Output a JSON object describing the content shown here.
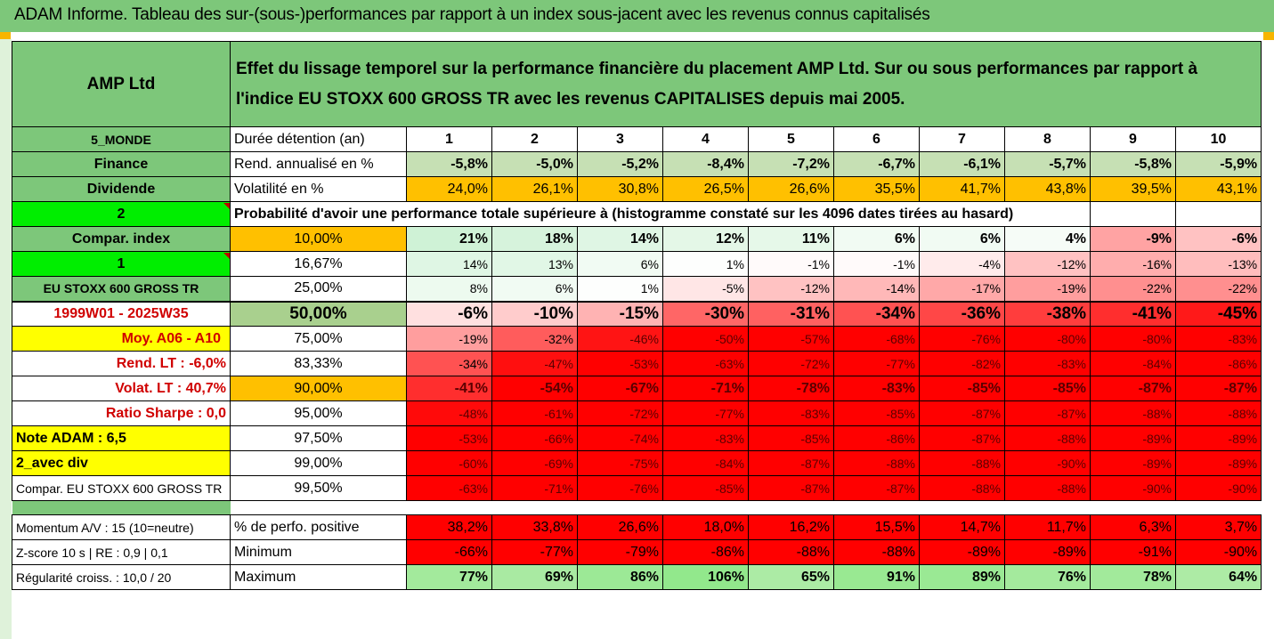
{
  "title": "ADAM Informe. Tableau des sur-(sous-)performances par rapport à un index sous-jacent avec les revenus connus capitalisés",
  "header": {
    "company": "AMP Ltd",
    "description": "Effet du lissage temporel sur la performance financière du placement AMP Ltd. Sur ou sous performances par rapport à l'indice EU STOXX 600 GROSS TR avec les revenus CAPITALISES depuis mai 2005."
  },
  "left": {
    "region": "5_MONDE",
    "sector": "Finance",
    "dividend": "Dividende",
    "num2": "2",
    "compar_index": "Compar. index",
    "num1": "1",
    "index_name": "EU STOXX 600 GROSS TR",
    "period": "1999W01 - 2025W35",
    "moy": "Moy. A06 - A10",
    "rend_lt": "Rend. LT :   -6,0%",
    "volat_lt": "Volat. LT :   40,7%",
    "sharpe": "Ratio Sharpe :   0,0",
    "note": "Note ADAM : 6,5",
    "avec_div": "2_avec div",
    "compar_eu": "Compar. EU STOXX 600 GROSS TR",
    "momentum": "Momentum A/V : 15 (10=neutre)",
    "zscore": "Z-score 10 s  | RE : 0,9  | 0,1",
    "regularite": "Régularité croiss. : 10,0 / 20"
  },
  "labels": {
    "duree": "Durée détention (an)",
    "rend": "Rend. annualisé en %",
    "volat": "Volatilité en %",
    "proba": "Probabilité d'avoir une performance totale supérieure à (histogramme constaté sur les 4096 dates tirées au hasard)",
    "perfo_pos": "% de perfo. positive",
    "minimum": "Minimum",
    "maximum": "Maximum"
  },
  "years": [
    "1",
    "2",
    "3",
    "4",
    "5",
    "6",
    "7",
    "8",
    "9",
    "10"
  ],
  "rend": [
    "-5,8%",
    "-5,0%",
    "-5,2%",
    "-8,4%",
    "-7,2%",
    "-6,7%",
    "-6,1%",
    "-5,7%",
    "-5,8%",
    "-5,9%"
  ],
  "volat": [
    "24,0%",
    "26,1%",
    "30,8%",
    "26,5%",
    "26,6%",
    "35,5%",
    "41,7%",
    "43,8%",
    "39,5%",
    "43,1%"
  ],
  "proba_rows": [
    {
      "pct": "10,00%",
      "values": [
        "21%",
        "18%",
        "14%",
        "12%",
        "11%",
        "6%",
        "6%",
        "4%",
        "-9%",
        "-6%"
      ]
    },
    {
      "pct": "16,67%",
      "values": [
        "14%",
        "13%",
        "6%",
        "1%",
        "-1%",
        "-1%",
        "-4%",
        "-12%",
        "-16%",
        "-13%"
      ]
    },
    {
      "pct": "25,00%",
      "values": [
        "8%",
        "6%",
        "1%",
        "-5%",
        "-12%",
        "-14%",
        "-17%",
        "-19%",
        "-22%",
        "-22%"
      ]
    },
    {
      "pct": "50,00%",
      "values": [
        "-6%",
        "-10%",
        "-15%",
        "-30%",
        "-31%",
        "-34%",
        "-36%",
        "-38%",
        "-41%",
        "-45%"
      ]
    },
    {
      "pct": "75,00%",
      "values": [
        "-19%",
        "-32%",
        "-46%",
        "-50%",
        "-57%",
        "-68%",
        "-76%",
        "-80%",
        "-80%",
        "-83%"
      ]
    },
    {
      "pct": "83,33%",
      "values": [
        "-34%",
        "-47%",
        "-53%",
        "-63%",
        "-72%",
        "-77%",
        "-82%",
        "-83%",
        "-84%",
        "-86%"
      ]
    },
    {
      "pct": "90,00%",
      "values": [
        "-41%",
        "-54%",
        "-67%",
        "-71%",
        "-78%",
        "-83%",
        "-85%",
        "-85%",
        "-87%",
        "-87%"
      ]
    },
    {
      "pct": "95,00%",
      "values": [
        "-48%",
        "-61%",
        "-72%",
        "-77%",
        "-83%",
        "-85%",
        "-87%",
        "-87%",
        "-88%",
        "-88%"
      ]
    },
    {
      "pct": "97,50%",
      "values": [
        "-53%",
        "-66%",
        "-74%",
        "-83%",
        "-85%",
        "-86%",
        "-87%",
        "-88%",
        "-89%",
        "-89%"
      ]
    },
    {
      "pct": "99,00%",
      "values": [
        "-60%",
        "-69%",
        "-75%",
        "-84%",
        "-87%",
        "-88%",
        "-88%",
        "-90%",
        "-89%",
        "-89%"
      ]
    },
    {
      "pct": "99,50%",
      "values": [
        "-63%",
        "-71%",
        "-76%",
        "-85%",
        "-87%",
        "-87%",
        "-88%",
        "-88%",
        "-90%",
        "-90%"
      ]
    }
  ],
  "perfo_pos": [
    "38,2%",
    "33,8%",
    "26,6%",
    "18,0%",
    "16,2%",
    "15,5%",
    "14,7%",
    "11,7%",
    "6,3%",
    "3,7%"
  ],
  "minimum": [
    "-66%",
    "-77%",
    "-79%",
    "-86%",
    "-88%",
    "-88%",
    "-89%",
    "-89%",
    "-91%",
    "-90%"
  ],
  "maximum": [
    "77%",
    "69%",
    "86%",
    "106%",
    "65%",
    "91%",
    "89%",
    "76%",
    "78%",
    "64%"
  ],
  "colors": {
    "header_green": "#7dc77a",
    "orange": "#ffc000",
    "yellow": "#ffff00",
    "bright_green": "#00ee00",
    "red": "#ff0000"
  }
}
